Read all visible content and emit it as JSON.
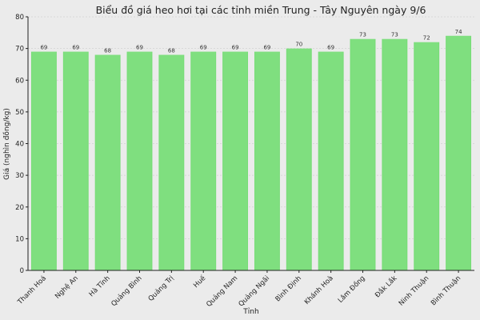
{
  "chart_data": {
    "type": "bar",
    "title": "Biểu đồ giá heo hơi tại các tỉnh miền Trung - Tây Nguyên ngày 9/6",
    "xlabel": "Tỉnh",
    "ylabel": "Giá (nghìn đồng/kg)",
    "categories": [
      "Thanh Hoá",
      "Nghệ An",
      "Hà Tĩnh",
      "Quảng Bình",
      "Quảng Trị",
      "Huế",
      "Quảng Nam",
      "Quảng Ngãi",
      "Bình Định",
      "Khánh Hoà",
      "Lâm Đồng",
      "Đắk Lắk",
      "Ninh Thuận",
      "Bình Thuận"
    ],
    "values": [
      69,
      69,
      68,
      69,
      68,
      69,
      69,
      69,
      70,
      69,
      73,
      73,
      72,
      74
    ],
    "ylim": [
      0,
      80
    ],
    "yticks": [
      0,
      10,
      20,
      30,
      40,
      50,
      60,
      70,
      80
    ],
    "grid": true,
    "bar_color": "#77dd77"
  }
}
